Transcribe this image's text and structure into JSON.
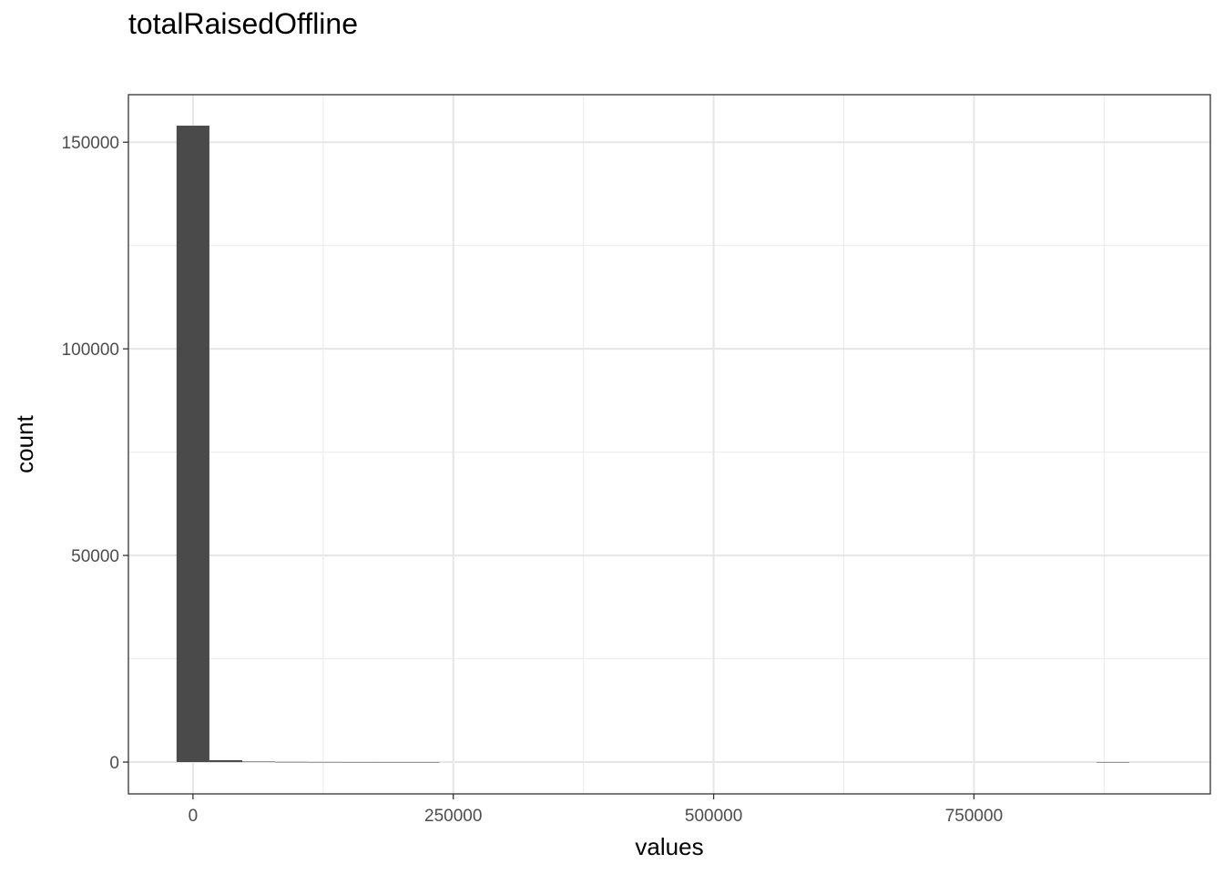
{
  "chart_data": {
    "type": "bar",
    "title": "totalRaisedOffline",
    "xlabel": "values",
    "ylabel": "count",
    "xlim": [
      -62000,
      977000
    ],
    "ylim": [
      -7700,
      161500
    ],
    "x_ticks": [
      0,
      250000,
      500000,
      750000
    ],
    "y_ticks": [
      0,
      50000,
      100000,
      150000
    ],
    "x_tick_labels": [
      "0",
      "250000",
      "500000",
      "750000"
    ],
    "y_tick_labels": [
      "0",
      "50000",
      "100000",
      "150000"
    ],
    "bin_width": 31550,
    "bins": [
      {
        "x": 0,
        "count": 154000
      },
      {
        "x": 31550,
        "count": 450
      },
      {
        "x": 63100,
        "count": 120
      },
      {
        "x": 94650,
        "count": 40
      },
      {
        "x": 126200,
        "count": 20
      },
      {
        "x": 157750,
        "count": 12
      },
      {
        "x": 189300,
        "count": 8
      },
      {
        "x": 220850,
        "count": 5
      },
      {
        "x": 883400,
        "count": 2
      }
    ],
    "bar_color": "#4a4a4a",
    "grid": true,
    "legend": "none"
  }
}
